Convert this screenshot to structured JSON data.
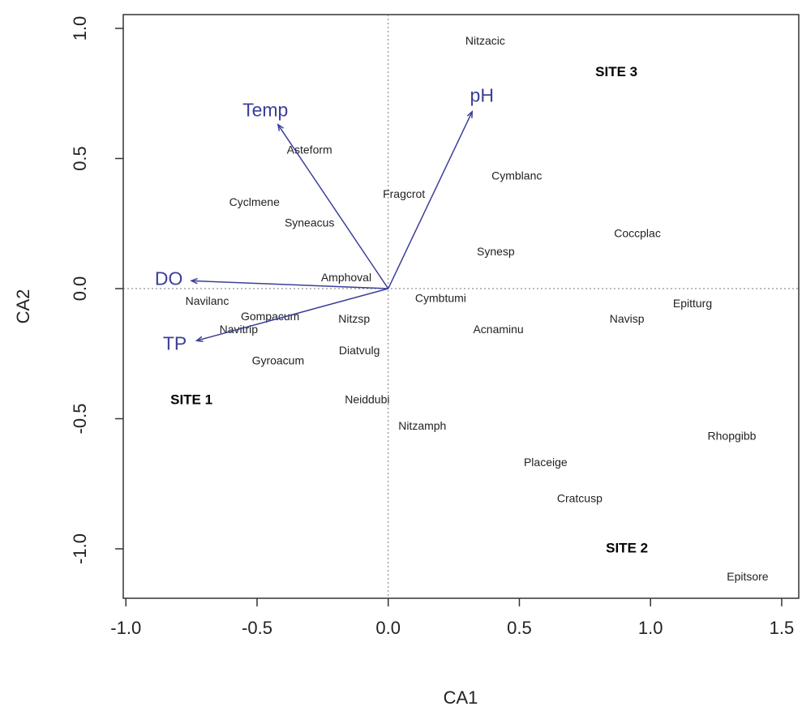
{
  "chart_data": {
    "type": "scatter",
    "xlabel": "CA1",
    "ylabel": "CA2",
    "xlim": [
      -1.01,
      1.565
    ],
    "ylim": [
      -1.19,
      1.053
    ],
    "xticks": [
      {
        "value": -1.0,
        "label": "-1.0"
      },
      -0.5,
      {
        "value": 0.0,
        "label": "0.0"
      },
      0.5,
      {
        "value": 1.0,
        "label": "1.0"
      },
      1.5
    ],
    "yticks": [
      {
        "value": -1.0,
        "label": "-1.0"
      },
      -0.5,
      {
        "value": 0.0,
        "label": "0.0"
      },
      0.5,
      {
        "value": 1.0,
        "label": "1.0"
      }
    ],
    "color": "#222222",
    "labels": [
      "Nitzacic",
      "Asteform",
      "Cyclmene",
      "Fragcrot",
      "Cymblanc",
      "Syneacus",
      "Coccplac",
      "Synesp",
      "Amphoval",
      "Navilanc",
      "Cymbtumi",
      "Epitturg",
      "Gompacum",
      "Nitzsp",
      "Navisp",
      "Navitrip",
      "Acnaminu",
      "Diatvulg",
      "Gyroacum",
      "Neiddubi",
      "Nitzamph",
      "Rhopgibb",
      "Placeige",
      "Cratcusp",
      "Epitsore"
    ],
    "x": [
      0.37,
      -0.3,
      -0.51,
      0.06,
      0.49,
      -0.3,
      0.95,
      0.41,
      -0.16,
      -0.69,
      0.2,
      1.16,
      -0.45,
      -0.13,
      0.91,
      -0.57,
      0.42,
      -0.11,
      -0.42,
      -0.08,
      0.13,
      1.31,
      0.6,
      0.73,
      1.37
    ],
    "y": [
      0.95,
      0.53,
      0.33,
      0.36,
      0.43,
      0.25,
      0.21,
      0.14,
      0.04,
      -0.05,
      -0.04,
      -0.06,
      -0.11,
      -0.12,
      -0.12,
      -0.16,
      -0.16,
      -0.24,
      -0.28,
      -0.43,
      -0.53,
      -0.57,
      -0.67,
      -0.81,
      -1.11
    ],
    "arrows": {
      "color": "#3b3f98",
      "labels": [
        "Temp",
        "pH",
        "DO",
        "TP"
      ],
      "x": [
        -0.42,
        0.32,
        -0.75,
        -0.73
      ],
      "y": [
        0.63,
        0.68,
        0.03,
        -0.2
      ]
    },
    "annotations": [
      {
        "text": "SITE 3",
        "x": 0.87,
        "y": 0.83
      },
      {
        "text": "SITE 1",
        "x": -0.75,
        "y": -0.43
      },
      {
        "text": "SITE 2",
        "x": 0.91,
        "y": -1.0
      }
    ]
  }
}
